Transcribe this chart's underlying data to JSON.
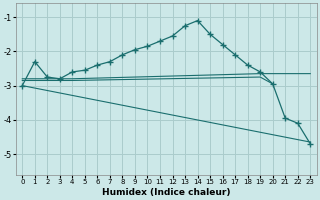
{
  "xlabel": "Humidex (Indice chaleur)",
  "xlim": [
    -0.5,
    23.5
  ],
  "ylim": [
    -5.6,
    -0.6
  ],
  "yticks": [
    -5,
    -4,
    -3,
    -2,
    -1
  ],
  "xticks": [
    0,
    1,
    2,
    3,
    4,
    5,
    6,
    7,
    8,
    9,
    10,
    11,
    12,
    13,
    14,
    15,
    16,
    17,
    18,
    19,
    20,
    21,
    22,
    23
  ],
  "bg_color": "#cce8e8",
  "grid_color": "#aacccc",
  "line_color": "#1a6e6e",
  "series_main": {
    "x": [
      0,
      1,
      2,
      3,
      4,
      5,
      6,
      7,
      8,
      9,
      10,
      11,
      12,
      13,
      14,
      15,
      16,
      17,
      18,
      19,
      20,
      21,
      22,
      23
    ],
    "y": [
      -3.0,
      -2.3,
      -2.75,
      -2.8,
      -2.6,
      -2.55,
      -2.4,
      -2.3,
      -2.1,
      -1.95,
      -1.85,
      -1.7,
      -1.55,
      -1.25,
      -1.1,
      -1.5,
      -1.8,
      -2.1,
      -2.4,
      -2.6,
      -2.95,
      -3.95,
      -4.1,
      -4.7
    ]
  },
  "series_flat1": {
    "x": [
      0,
      4,
      19,
      23
    ],
    "y": [
      -2.8,
      -2.8,
      -2.65,
      -2.65
    ]
  },
  "series_flat2": {
    "x": [
      0,
      4,
      19,
      20
    ],
    "y": [
      -2.85,
      -2.85,
      -2.75,
      -2.95
    ]
  },
  "series_diag": {
    "x": [
      0,
      23
    ],
    "y": [
      -3.0,
      -4.65
    ]
  }
}
